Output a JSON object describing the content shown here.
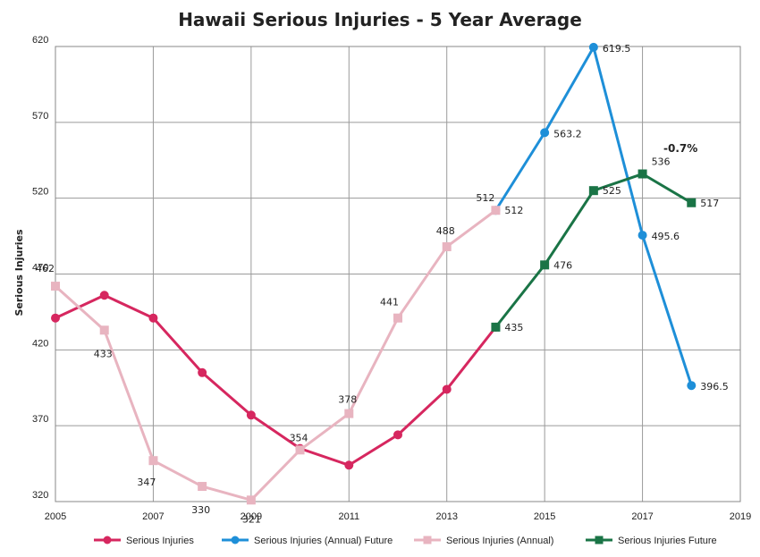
{
  "chart_data": {
    "type": "line",
    "title": "Hawaii Serious Injuries - 5 Year Average",
    "xlabel": "",
    "ylabel": "Serious Injuries",
    "xlim": [
      2005,
      2019
    ],
    "ylim": [
      320,
      620
    ],
    "xticks": [
      "2005",
      "2007",
      "2009",
      "2011",
      "2013",
      "2015",
      "2017",
      "2019"
    ],
    "yticks": [
      "320",
      "370",
      "420",
      "470",
      "520",
      "570",
      "620"
    ],
    "grid": true,
    "legend_position": "bottom",
    "annotation": "-0.7%",
    "series": [
      {
        "name": "Serious Injuries",
        "color": "#d6275f",
        "marker": "circle",
        "points": [
          [
            2005,
            441
          ],
          [
            2006,
            456
          ],
          [
            2007,
            441
          ],
          [
            2008,
            405
          ],
          [
            2009,
            377
          ],
          [
            2010,
            355
          ],
          [
            2011,
            344
          ],
          [
            2012,
            364
          ],
          [
            2013,
            394
          ],
          [
            2014,
            435
          ]
        ],
        "labels": [
          "",
          "",
          "",
          "",
          "",
          "",
          "",
          "",
          "",
          ""
        ]
      },
      {
        "name": "Serious Injuries (Annual) Future",
        "color": "#1e8fd8",
        "marker": "circle",
        "points": [
          [
            2014,
            512
          ],
          [
            2015,
            563.2
          ],
          [
            2016,
            619.5
          ],
          [
            2017,
            495.6
          ],
          [
            2018,
            396.5
          ]
        ],
        "labels": [
          "512",
          "563.2",
          "619.5",
          "495.6",
          "396.5"
        ]
      },
      {
        "name": "Serious Injuries (Annual)",
        "color": "#e8b4c0",
        "marker": "square",
        "points": [
          [
            2005,
            462
          ],
          [
            2006,
            433
          ],
          [
            2007,
            347
          ],
          [
            2008,
            330
          ],
          [
            2009,
            321
          ],
          [
            2010,
            354
          ],
          [
            2011,
            378
          ],
          [
            2012,
            441
          ],
          [
            2013,
            488
          ],
          [
            2014,
            512
          ]
        ],
        "labels": [
          "462",
          "433",
          "347",
          "330",
          "321",
          "354",
          "378",
          "441",
          "488",
          "512"
        ]
      },
      {
        "name": "Serious Injuries Future",
        "color": "#1a7446",
        "marker": "square",
        "points": [
          [
            2014,
            435
          ],
          [
            2015,
            476
          ],
          [
            2016,
            525
          ],
          [
            2017,
            536
          ],
          [
            2018,
            517
          ]
        ],
        "labels": [
          "435",
          "476",
          "525",
          "536",
          "517"
        ]
      }
    ]
  }
}
